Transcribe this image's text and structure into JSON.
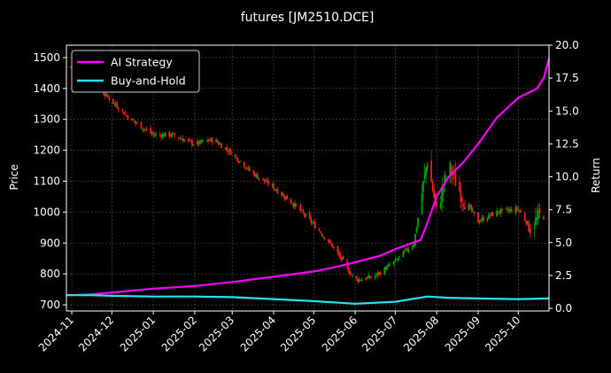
{
  "chart_data": {
    "type": "line",
    "title": "futures [JM2510.DCE]",
    "ylabel": "Price",
    "y2label": "Return",
    "ylim": [
      680,
      1540
    ],
    "y2lim": [
      -0.2,
      20.0
    ],
    "yticks": [
      700,
      800,
      900,
      1000,
      1100,
      1200,
      1300,
      1400,
      1500
    ],
    "y2ticks": [
      0.0,
      2.5,
      5.0,
      7.5,
      10.0,
      12.5,
      15.0,
      17.5,
      20.0
    ],
    "x_range": [
      "2024-10-28",
      "2025-10-24"
    ],
    "xticks": [
      "2024-11",
      "2024-12",
      "2025-01",
      "2025-02",
      "2025-03",
      "2025-04",
      "2025-05",
      "2025-06",
      "2025-07",
      "2025-08",
      "2025-09",
      "2025-10"
    ],
    "xtick_dates": [
      "2024-11-01",
      "2024-12-01",
      "2025-01-01",
      "2025-02-01",
      "2025-03-01",
      "2025-04-01",
      "2025-05-01",
      "2025-06-01",
      "2025-07-01",
      "2025-08-01",
      "2025-09-01",
      "2025-10-01"
    ],
    "grid": true,
    "legend_position": "top-left",
    "colors": {
      "background": "#000000",
      "up_candle": "#00a000",
      "down_candle": "#ff1a1a",
      "ai_strategy": "#ff00ff",
      "buy_and_hold": "#22e5f0",
      "grid": "#555555"
    },
    "candlestick_price": {
      "series_name": "",
      "x": [
        "2024-10-31",
        "2024-11-15",
        "2024-12-01",
        "2024-12-15",
        "2025-01-01",
        "2025-01-15",
        "2025-02-01",
        "2025-02-15",
        "2025-03-01",
        "2025-03-15",
        "2025-04-01",
        "2025-04-15",
        "2025-05-01",
        "2025-05-15",
        "2025-06-01",
        "2025-06-15",
        "2025-07-01",
        "2025-07-15",
        "2025-07-25",
        "2025-08-01",
        "2025-08-10",
        "2025-08-20",
        "2025-09-01",
        "2025-09-15",
        "2025-10-01",
        "2025-10-10",
        "2025-10-20"
      ],
      "close": [
        1470,
        1420,
        1360,
        1300,
        1250,
        1250,
        1220,
        1235,
        1190,
        1130,
        1080,
        1030,
        960,
        890,
        780,
        790,
        840,
        900,
        1170,
        1000,
        1150,
        1050,
        970,
        1000,
        1010,
        950,
        1000
      ]
    },
    "series": [
      {
        "name": "AI Strategy",
        "x": [
          "2024-10-28",
          "2024-11-15",
          "2024-12-01",
          "2025-01-01",
          "2025-02-01",
          "2025-03-01",
          "2025-04-01",
          "2025-05-01",
          "2025-05-20",
          "2025-06-01",
          "2025-06-20",
          "2025-07-01",
          "2025-07-20",
          "2025-07-25",
          "2025-08-01",
          "2025-08-10",
          "2025-08-20",
          "2025-09-01",
          "2025-09-15",
          "2025-10-01",
          "2025-10-15",
          "2025-10-20",
          "2025-10-24"
        ],
        "values": [
          1.0,
          1.05,
          1.2,
          1.5,
          1.7,
          2.0,
          2.4,
          2.8,
          3.2,
          3.5,
          4.0,
          4.5,
          5.2,
          6.5,
          8.5,
          10.0,
          11.0,
          12.5,
          14.5,
          16.0,
          16.7,
          17.5,
          19.0
        ]
      },
      {
        "name": "Buy-and-Hold",
        "x": [
          "2024-10-28",
          "2024-11-15",
          "2024-12-01",
          "2025-01-01",
          "2025-02-01",
          "2025-03-01",
          "2025-04-01",
          "2025-05-01",
          "2025-06-01",
          "2025-07-01",
          "2025-07-25",
          "2025-08-10",
          "2025-09-01",
          "2025-10-01",
          "2025-10-24"
        ],
        "values": [
          1.0,
          1.0,
          0.95,
          0.9,
          0.9,
          0.85,
          0.7,
          0.55,
          0.35,
          0.5,
          0.9,
          0.8,
          0.75,
          0.7,
          0.75
        ]
      }
    ]
  }
}
